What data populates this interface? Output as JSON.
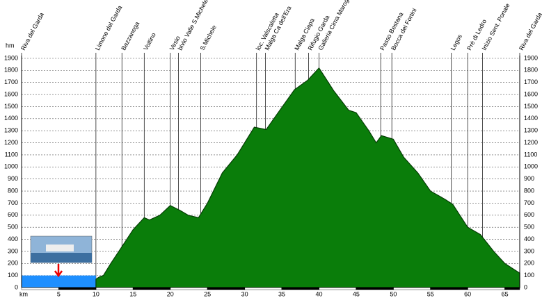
{
  "chart_data": {
    "type": "area",
    "y_label": "hm",
    "x_label": "km",
    "xlim": [
      0,
      67
    ],
    "ylim": [
      0,
      1900
    ],
    "xticks": [
      5,
      10,
      15,
      20,
      25,
      30,
      35,
      40,
      45,
      50,
      55,
      60,
      65
    ],
    "yticks": [
      0,
      100,
      200,
      300,
      400,
      500,
      600,
      700,
      800,
      900,
      1000,
      1100,
      1200,
      1300,
      1400,
      1500,
      1600,
      1700,
      1800,
      1900
    ],
    "grid": true,
    "series": [
      {
        "color": "#1e8fff",
        "x": [
          0,
          10
        ],
        "values": [
          100,
          100
        ]
      },
      {
        "color": "#0a7d0a",
        "x": [
          10,
          10.5,
          11,
          12,
          13.4,
          15,
          16.5,
          17.2,
          18.6,
          20,
          21.3,
          22.4,
          23.8,
          25,
          27,
          29,
          30,
          31.3,
          32.9,
          34.5,
          36.7,
          38.5,
          40,
          42,
          44,
          45,
          46.7,
          47.7,
          48.4,
          50,
          51.4,
          53.3,
          55,
          57,
          58,
          60,
          61.7,
          63.5,
          65,
          67
        ],
        "values": [
          70,
          90,
          100,
          200,
          330,
          480,
          580,
          560,
          600,
          680,
          640,
          600,
          580,
          700,
          950,
          1100,
          1200,
          1330,
          1310,
          1450,
          1640,
          1720,
          1820,
          1630,
          1470,
          1450,
          1300,
          1200,
          1260,
          1230,
          1080,
          950,
          800,
          730,
          690,
          500,
          440,
          300,
          200,
          120
        ]
      }
    ],
    "annotations": [
      {
        "text": "Riva del Garda",
        "x": 0
      },
      {
        "text": "Limone del Garda",
        "x": 10
      },
      {
        "text": "Bazzanega",
        "x": 13.5
      },
      {
        "text": "Voltino",
        "x": 16.5
      },
      {
        "text": "Vesio",
        "x": 20
      },
      {
        "text": "bivio Valle S.Michele",
        "x": 21.1
      },
      {
        "text": "S.Michele",
        "x": 24.1
      },
      {
        "text": "loc. Valscaletta",
        "x": 31.6
      },
      {
        "text": "Malga Ca dell'Era",
        "x": 32.8
      },
      {
        "text": "Malga Ciapa",
        "x": 36.8
      },
      {
        "text": "Rifugio Garda",
        "x": 38.6
      },
      {
        "text": "Galleria Cima Marogna",
        "x": 40
      },
      {
        "text": "Passo Bestana",
        "x": 48.3
      },
      {
        "text": "Bocca dei Fortini",
        "x": 49.8
      },
      {
        "text": "Legos",
        "x": 57.8
      },
      {
        "text": "Prè di Ledro",
        "x": 60
      },
      {
        "text": "Inizio Sent. Ponale",
        "x": 62
      },
      {
        "text": "Riva del Garda",
        "x": 67
      }
    ]
  }
}
